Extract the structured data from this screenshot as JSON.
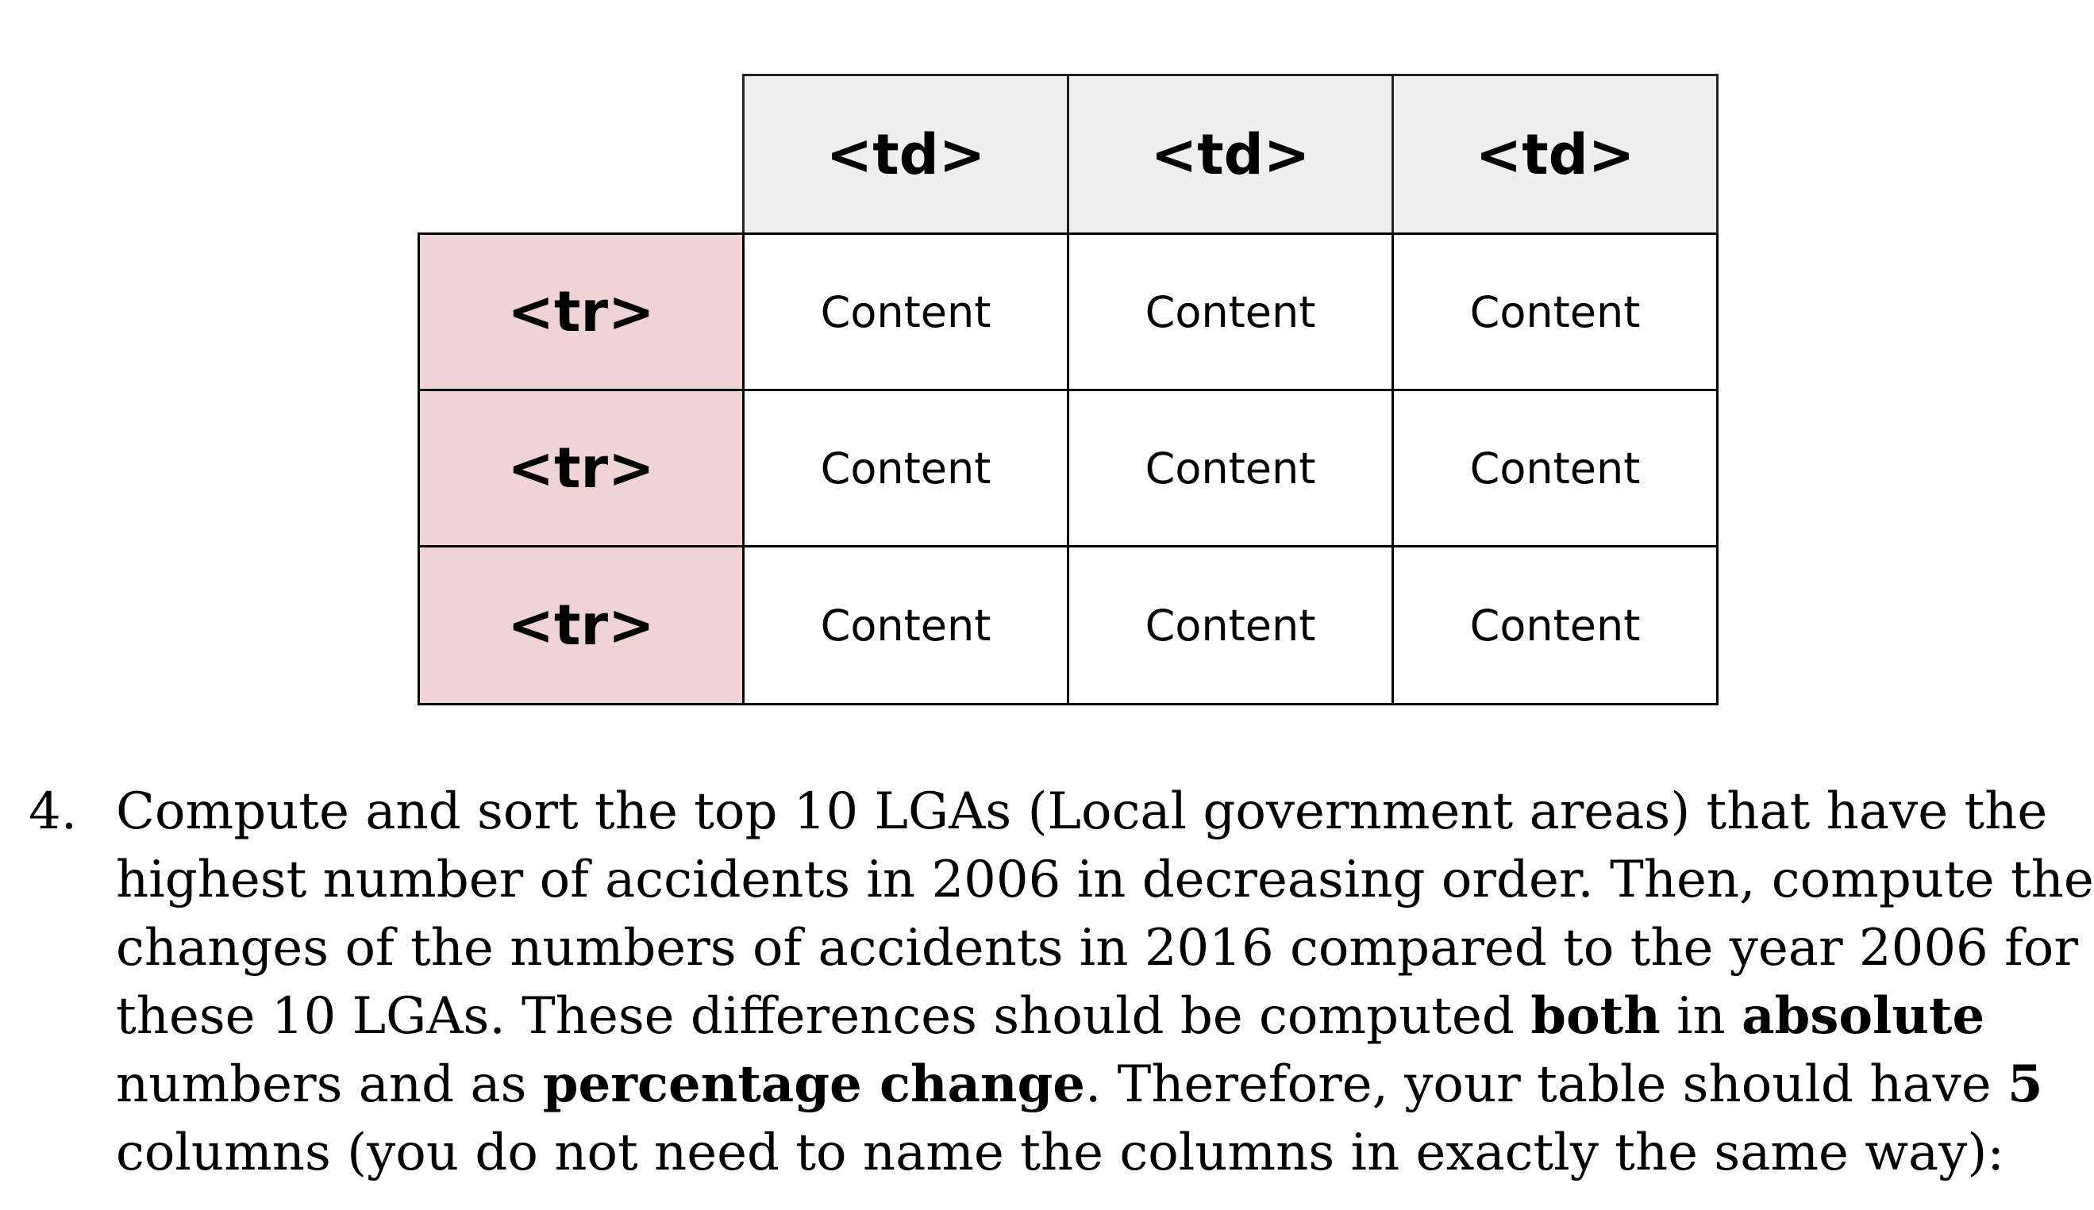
{
  "diagram": {
    "column_headers": [
      "<td>",
      "<td>",
      "<td>"
    ],
    "rows": [
      {
        "label": "<tr>",
        "cells": [
          "Content",
          "Content",
          "Content"
        ]
      },
      {
        "label": "<tr>",
        "cells": [
          "Content",
          "Content",
          "Content"
        ]
      },
      {
        "label": "<tr>",
        "cells": [
          "Content",
          "Content",
          "Content"
        ]
      }
    ],
    "colors": {
      "header_bg": "#efefef",
      "row_header_bg": "#f0d3d4",
      "border": "#000000"
    }
  },
  "instruction": {
    "number": "4.",
    "lines": [
      [
        {
          "t": "Compute and sort the top 10 LGAs (Local government areas) that have the"
        }
      ],
      [
        {
          "t": "highest number of accidents in 2006 in decreasing order. Then, compute the"
        }
      ],
      [
        {
          "t": "changes of the numbers of accidents in 2016 compared to the year 2006 for"
        }
      ],
      [
        {
          "t": "these 10 LGAs. These differences should be computed "
        },
        {
          "t": "both",
          "b": true
        },
        {
          "t": " in "
        },
        {
          "t": "absolute",
          "b": true
        }
      ],
      [
        {
          "t": "numbers and as "
        },
        {
          "t": "percentage change",
          "b": true
        },
        {
          "t": ". Therefore, your table should have "
        },
        {
          "t": "5",
          "b": true
        }
      ],
      [
        {
          "t": "columns (you do not need to name the columns in exactly the same way):"
        }
      ]
    ]
  }
}
